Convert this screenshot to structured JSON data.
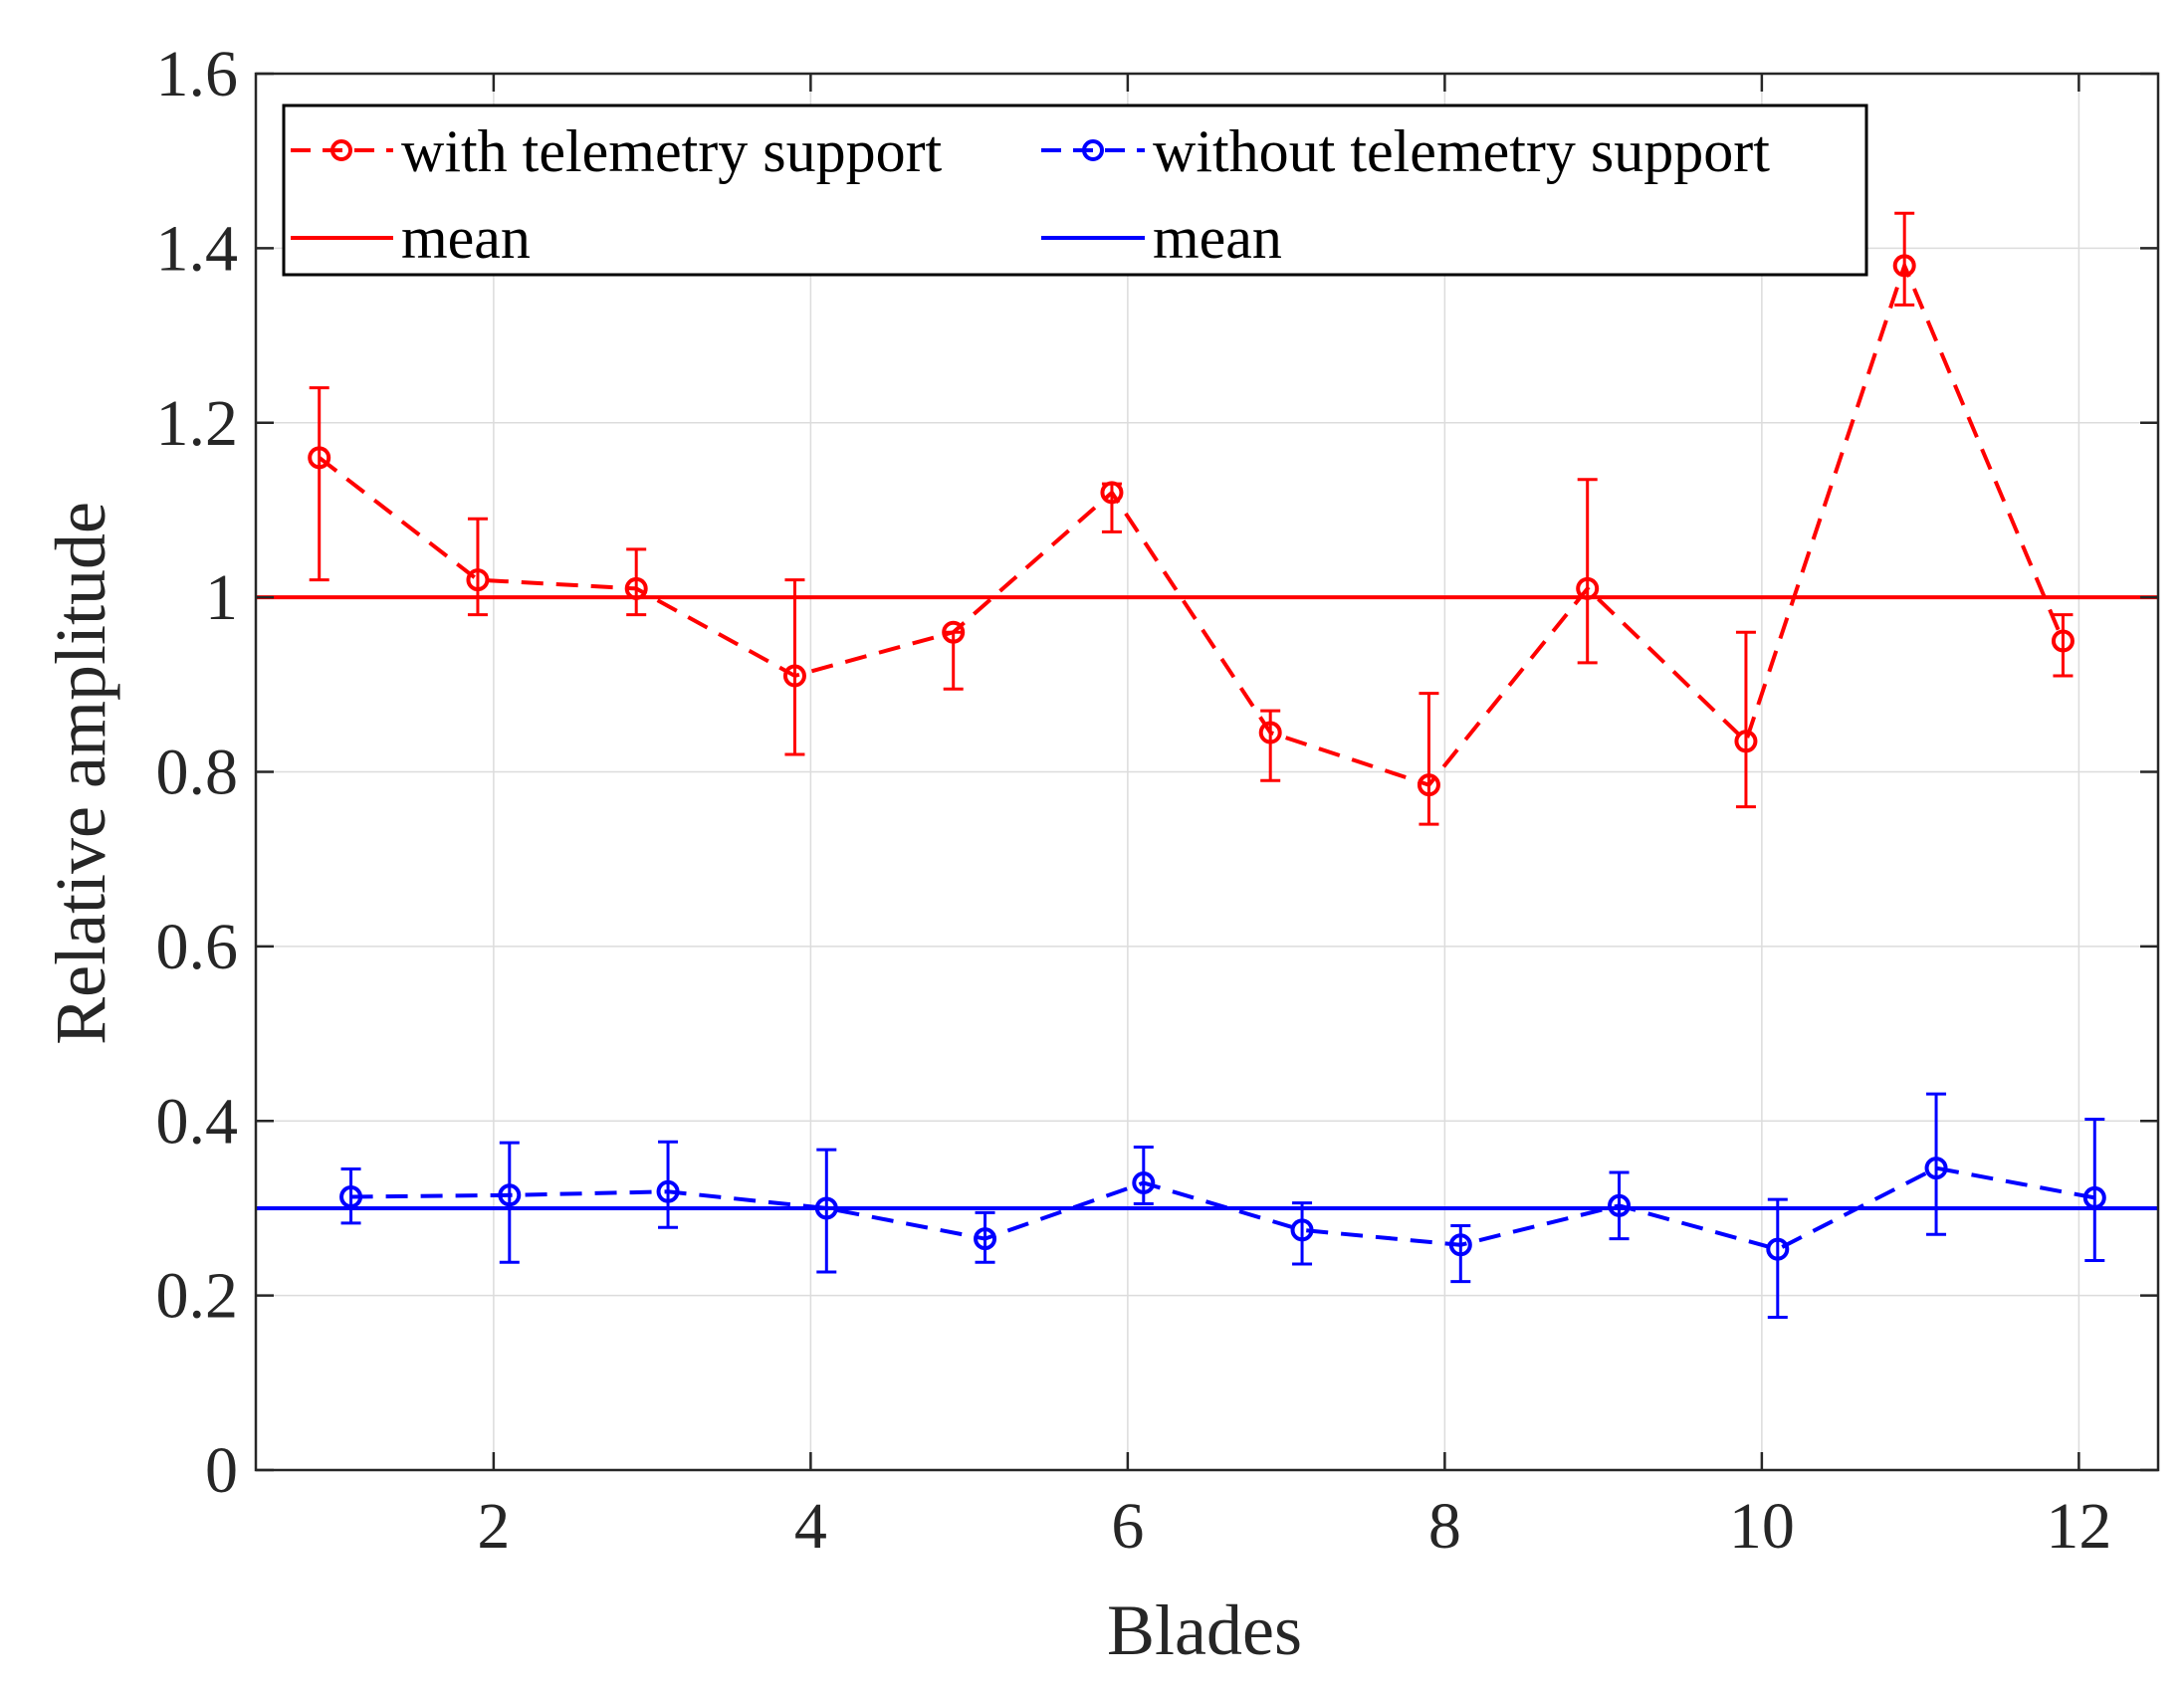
{
  "chart_data": {
    "type": "line",
    "xlabel": "Blades",
    "ylabel": "Relative amplitude",
    "xlim": [
      0.5,
      12.5
    ],
    "ylim": [
      0,
      1.6
    ],
    "xticks": [
      2,
      4,
      6,
      8,
      10,
      12
    ],
    "xtick_labels": [
      "2",
      "4",
      "6",
      "8",
      "10",
      "12"
    ],
    "yticks": [
      0,
      0.2,
      0.4,
      0.6,
      0.8,
      1.0,
      1.2,
      1.4,
      1.6
    ],
    "ytick_labels": [
      "0",
      "0.2",
      "0.4",
      "0.6",
      "0.8",
      "1",
      "1.2",
      "1.4",
      "1.6"
    ],
    "grid": true,
    "legend_position": "top-left",
    "series": [
      {
        "name": "with telemetry support",
        "color": "#ff0000",
        "style": "dashed-circle-markers",
        "x": [
          0.9,
          1.9,
          2.9,
          3.9,
          4.9,
          5.9,
          6.9,
          7.9,
          8.9,
          9.9,
          10.9,
          11.9
        ],
        "values": [
          1.16,
          1.02,
          1.01,
          0.91,
          0.96,
          1.12,
          0.845,
          0.785,
          1.01,
          0.835,
          1.38,
          0.95
        ],
        "err_low": [
          1.02,
          0.98,
          0.98,
          0.82,
          0.895,
          1.075,
          0.79,
          0.74,
          0.925,
          0.76,
          1.335,
          0.91
        ],
        "err_high": [
          1.24,
          1.09,
          1.055,
          1.02,
          0.96,
          1.13,
          0.87,
          0.89,
          1.135,
          0.96,
          1.44,
          0.98
        ]
      },
      {
        "name": "without telemetry support",
        "color": "#0000ff",
        "style": "dashed-circle-markers",
        "x": [
          1.1,
          2.1,
          3.1,
          4.1,
          5.1,
          6.1,
          7.1,
          8.1,
          9.1,
          10.1,
          11.1,
          12.1
        ],
        "values": [
          0.313,
          0.315,
          0.319,
          0.3,
          0.265,
          0.329,
          0.275,
          0.258,
          0.303,
          0.253,
          0.346,
          0.312
        ],
        "err_low": [
          0.283,
          0.238,
          0.278,
          0.227,
          0.238,
          0.305,
          0.236,
          0.216,
          0.265,
          0.175,
          0.27,
          0.24
        ],
        "err_high": [
          0.345,
          0.375,
          0.376,
          0.367,
          0.295,
          0.37,
          0.306,
          0.28,
          0.341,
          0.31,
          0.431,
          0.402
        ]
      }
    ],
    "reference_lines": [
      {
        "name": "mean",
        "series": "with telemetry support",
        "y": 1.0,
        "color": "#ff0000"
      },
      {
        "name": "mean",
        "series": "without telemetry support",
        "y": 0.3,
        "color": "#0000ff"
      }
    ]
  },
  "legend": {
    "entries": [
      {
        "label": "with telemetry support",
        "kind": "dashed-marker",
        "color": "#ff0000"
      },
      {
        "label": "without telemetry support",
        "kind": "dashed-marker",
        "color": "#0000ff"
      },
      {
        "label": "mean",
        "kind": "solid",
        "color": "#ff0000"
      },
      {
        "label": "mean",
        "kind": "solid",
        "color": "#0000ff"
      }
    ]
  }
}
